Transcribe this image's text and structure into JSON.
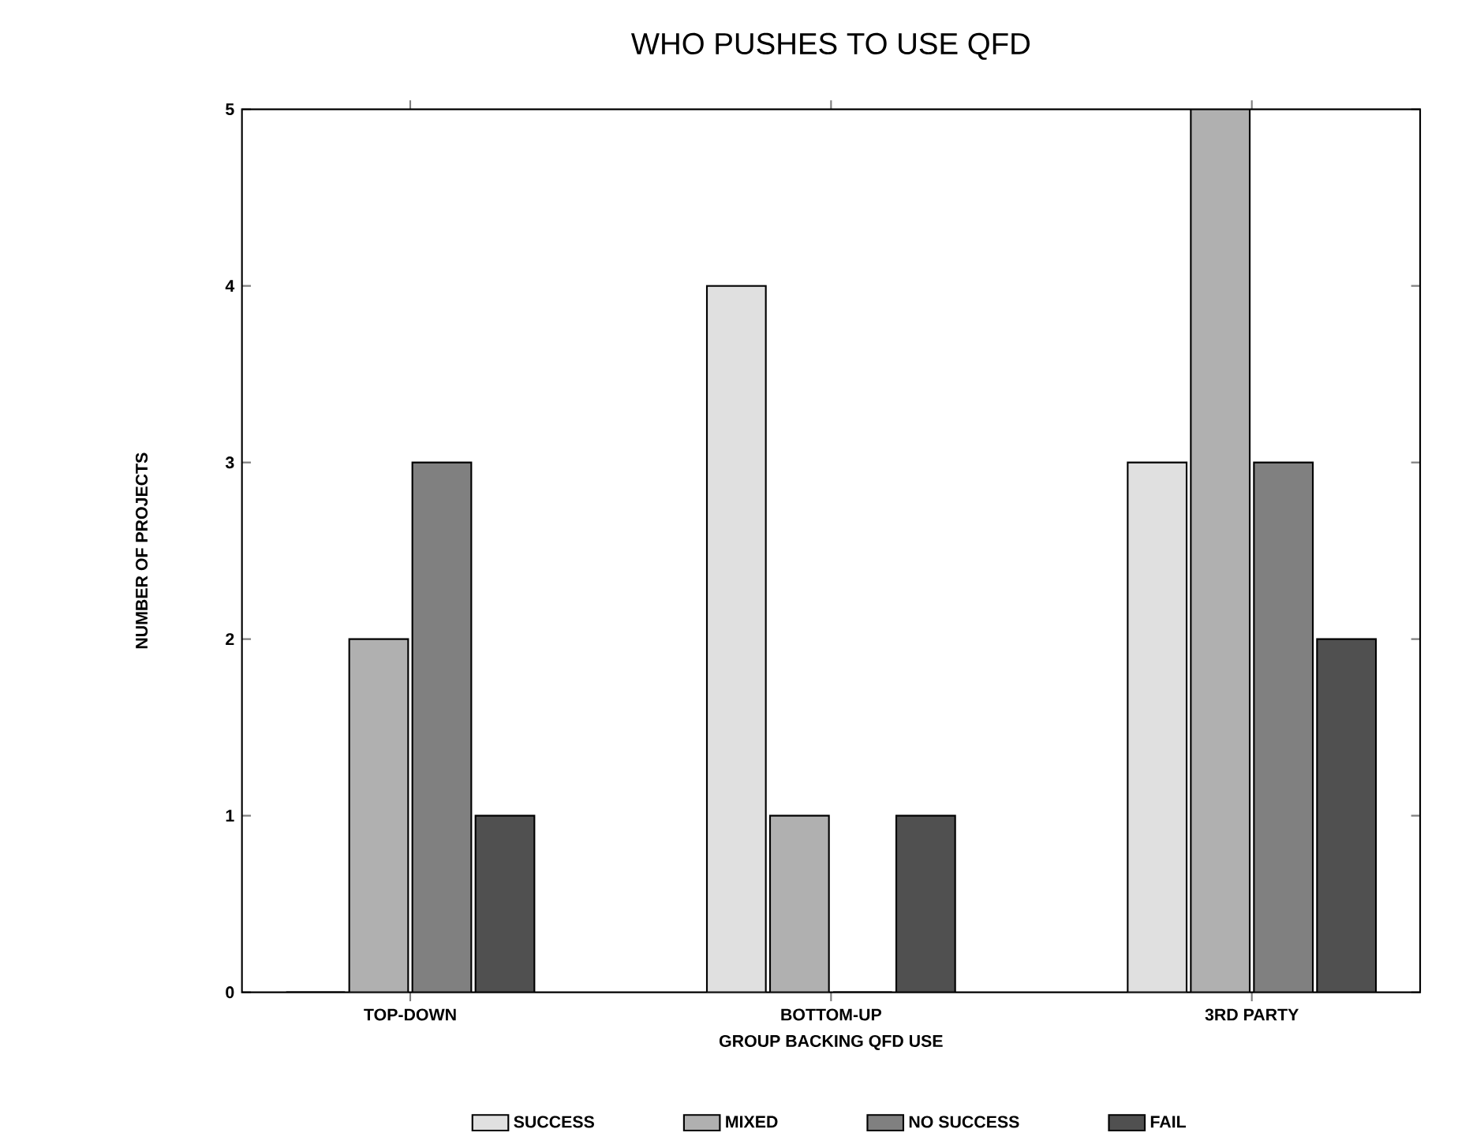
{
  "chart_data": {
    "type": "bar",
    "title": "WHO PUSHES TO USE QFD",
    "xlabel": "GROUP BACKING QFD USE",
    "ylabel": "NUMBER OF PROJECTS",
    "categories": [
      "TOP-DOWN",
      "BOTTOM-UP",
      "3RD PARTY"
    ],
    "series": [
      {
        "name": "SUCCESS",
        "color": "#e0e0e0",
        "values": [
          0,
          4,
          3
        ]
      },
      {
        "name": "MIXED",
        "color": "#b0b0b0",
        "values": [
          2,
          1,
          5
        ]
      },
      {
        "name": "NO SUCCESS",
        "color": "#808080",
        "values": [
          3,
          0,
          3
        ]
      },
      {
        "name": "FAIL",
        "color": "#505050",
        "values": [
          1,
          1,
          2
        ]
      }
    ],
    "ylim": [
      0,
      5
    ],
    "yticks": [
      0,
      1,
      2,
      3,
      4,
      5
    ],
    "legend": "bottom"
  }
}
